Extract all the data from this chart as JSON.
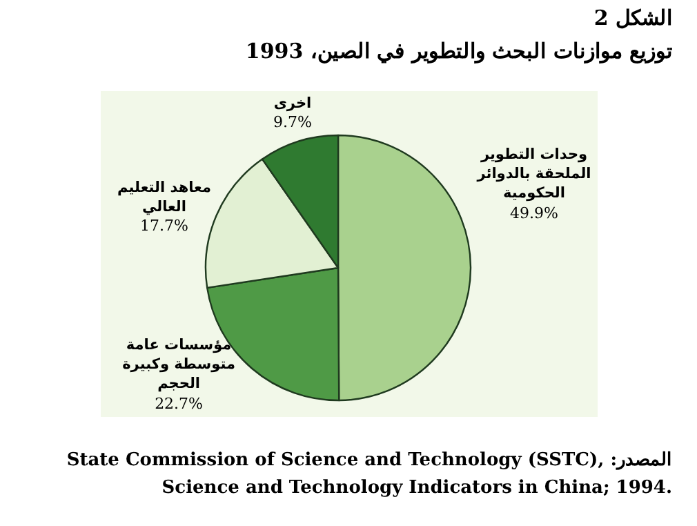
{
  "chart_data": {
    "type": "pie",
    "title": "الشكل 2",
    "subtitle": "توزيع موازنات البحث والتطوير في الصين، 1993",
    "categories": [
      "وحدات التطوير الملحقة بالدوائر الحكومية",
      "مؤسسات عامة متوسطة وكبيرة الحجم",
      "معاهد التعليم العالي",
      "اخرى"
    ],
    "values": [
      49.9,
      22.7,
      17.7,
      9.7
    ],
    "colors": [
      "#a9d18e",
      "#4f9a46",
      "#e2f0d3",
      "#2f7a30"
    ],
    "value_labels": [
      "49.9%",
      "22.7%",
      "17.7%",
      "9.7%"
    ],
    "annotations": [
      "المصدر: State Commission of Science and Technology (SSTC), Science and Technology Indicators in China; 1994."
    ]
  }
}
